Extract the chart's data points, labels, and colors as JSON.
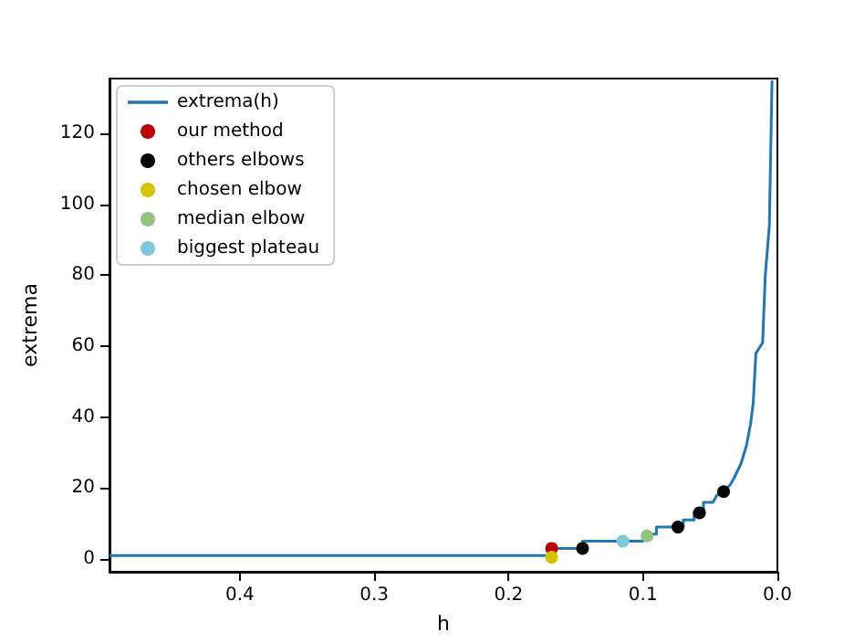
{
  "chart_data": {
    "type": "line",
    "xlabel": "h",
    "ylabel": "extrema",
    "xlim": [
      0.497,
      0
    ],
    "xticks": [
      {
        "value": 0.4,
        "label": "0.4"
      },
      {
        "value": 0.3,
        "label": "0.3"
      },
      {
        "value": 0.2,
        "label": "0.2"
      },
      {
        "value": 0.1,
        "label": "0.1"
      },
      {
        "value": 0,
        "label": "0.0"
      }
    ],
    "ylim": [
      -3.6,
      135.5
    ],
    "yticks": [
      0,
      20,
      40,
      60,
      80,
      100,
      120
    ],
    "grid": false,
    "legend": "top left",
    "series": [
      {
        "name": "extrema(h)",
        "color": "#1f77b4",
        "marker": "none",
        "x": [
          0.497,
          0.168,
          0.168,
          0.145,
          0.145,
          0.1,
          0.1,
          0.09,
          0.09,
          0.07,
          0.07,
          0.062,
          0.062,
          0.055,
          0.055,
          0.048,
          0.045,
          0.04,
          0.035,
          0.032,
          0.027,
          0.023,
          0.02,
          0.018,
          0.016,
          0.011,
          0.009,
          0.006,
          0.004
        ],
        "values": [
          1,
          1,
          3,
          3,
          5,
          5,
          7,
          7,
          9,
          9,
          11,
          11,
          13,
          13,
          16,
          16,
          18,
          19,
          21,
          23,
          27,
          32,
          38,
          44,
          58,
          61,
          80,
          94,
          135
        ]
      },
      {
        "name": "our method",
        "type": "scatter",
        "color": "#c00000",
        "marker": "circle",
        "x": [
          0.168
        ],
        "values": [
          3
        ]
      },
      {
        "name": "others elbows",
        "type": "scatter",
        "color": "#000000",
        "marker": "circle",
        "x": [
          0.145,
          0.074,
          0.058,
          0.04
        ],
        "values": [
          3,
          9,
          13,
          19
        ]
      },
      {
        "name": "chosen elbow",
        "type": "scatter",
        "color": "#d4c400",
        "marker": "circle",
        "x": [
          0.168
        ],
        "values": [
          0.5
        ]
      },
      {
        "name": "median elbow",
        "type": "scatter",
        "color": "#93c47d",
        "marker": "circle",
        "x": [
          0.097
        ],
        "values": [
          6.5
        ]
      },
      {
        "name": "biggest plateau",
        "type": "scatter",
        "color": "#7ec8dc",
        "marker": "circle",
        "x": [
          0.115
        ],
        "values": [
          5
        ]
      }
    ]
  }
}
